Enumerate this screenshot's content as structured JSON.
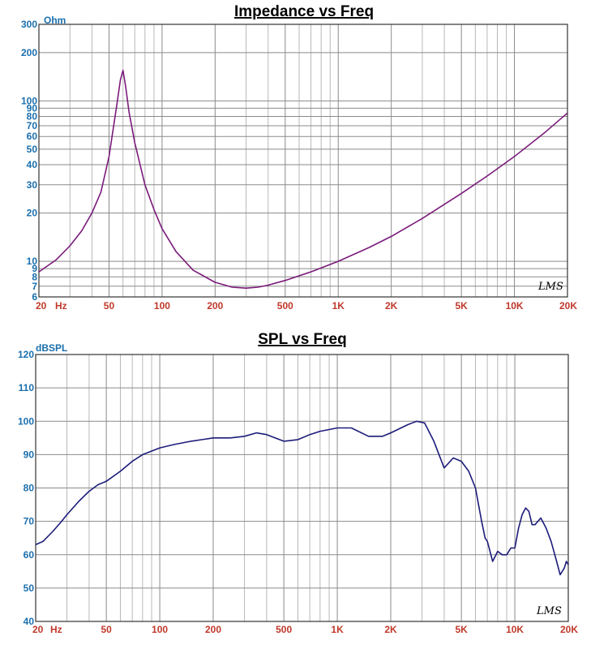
{
  "chart_data": [
    {
      "type": "line",
      "title": "Impedance vs Freq",
      "ylabel": "Ohm",
      "xlabel": "",
      "x_unit_label": "Hz",
      "xscale": "log",
      "yscale": "log",
      "xlim": [
        20,
        20000
      ],
      "ylim": [
        6,
        300
      ],
      "grid": true,
      "watermark": "LMS",
      "x_tick_labels": [
        "20",
        "50",
        "100",
        "200",
        "500",
        "1K",
        "2K",
        "5K",
        "10K",
        "20K"
      ],
      "y_tick_labels": [
        "300",
        "200",
        "100",
        "90",
        "80",
        "70",
        "60",
        "50",
        "40",
        "30",
        "20",
        "10",
        "9",
        "8",
        "7",
        "6"
      ],
      "series": [
        {
          "color": "#7a1a7a",
          "x": [
            20,
            25,
            30,
            35,
            40,
            45,
            50,
            55,
            58,
            60,
            62,
            65,
            70,
            80,
            90,
            100,
            120,
            150,
            200,
            250,
            300,
            350,
            400,
            500,
            700,
            1000,
            1500,
            2000,
            3000,
            5000,
            7000,
            10000,
            15000,
            20000
          ],
          "y": [
            8.6,
            10.2,
            12.5,
            15.5,
            20,
            27,
            45,
            90,
            135,
            155,
            125,
            85,
            55,
            30,
            21,
            16,
            11.5,
            8.8,
            7.4,
            6.9,
            6.8,
            6.9,
            7.1,
            7.6,
            8.6,
            10.0,
            12.2,
            14.3,
            18.5,
            26.5,
            34,
            45,
            64,
            84
          ]
        }
      ]
    },
    {
      "type": "line",
      "title": "SPL vs Freq",
      "ylabel": "dBSPL",
      "xlabel": "",
      "x_unit_label": "Hz",
      "xscale": "log",
      "yscale": "linear",
      "xlim": [
        20,
        20000
      ],
      "ylim": [
        40,
        120
      ],
      "grid": true,
      "watermark": "LMS",
      "x_tick_labels": [
        "20",
        "50",
        "100",
        "200",
        "500",
        "1K",
        "2K",
        "5K",
        "10K",
        "20K"
      ],
      "y_tick_labels": [
        "120",
        "110",
        "100",
        "90",
        "80",
        "70",
        "60",
        "50",
        "40"
      ],
      "series": [
        {
          "color": "#1c1c7a",
          "x": [
            20,
            22,
            25,
            28,
            30,
            35,
            40,
            45,
            50,
            60,
            70,
            80,
            100,
            120,
            150,
            200,
            250,
            300,
            350,
            400,
            500,
            600,
            700,
            800,
            1000,
            1200,
            1500,
            1800,
            2000,
            2500,
            2800,
            3100,
            3500,
            4000,
            4500,
            5000,
            5500,
            6000,
            6500,
            6800,
            7000,
            7500,
            8000,
            8500,
            9000,
            9500,
            10000,
            10500,
            11000,
            11500,
            12000,
            12500,
            13000,
            14000,
            15000,
            16000,
            17000,
            18000,
            19000,
            19500,
            20000
          ],
          "y": [
            63,
            64,
            67,
            70,
            72,
            76,
            79,
            81,
            82,
            85,
            88,
            90,
            92,
            93,
            94,
            95,
            95,
            95.5,
            96.5,
            96,
            94,
            94.5,
            96,
            97,
            98,
            98,
            95.5,
            95.5,
            96.5,
            99,
            100,
            99.5,
            94,
            86,
            89,
            88,
            85,
            80,
            70,
            65,
            64,
            58,
            61,
            60,
            60,
            62,
            62,
            68,
            72,
            74,
            73,
            69,
            69,
            71,
            68,
            64,
            59,
            54,
            56,
            58,
            57
          ]
        }
      ]
    }
  ]
}
